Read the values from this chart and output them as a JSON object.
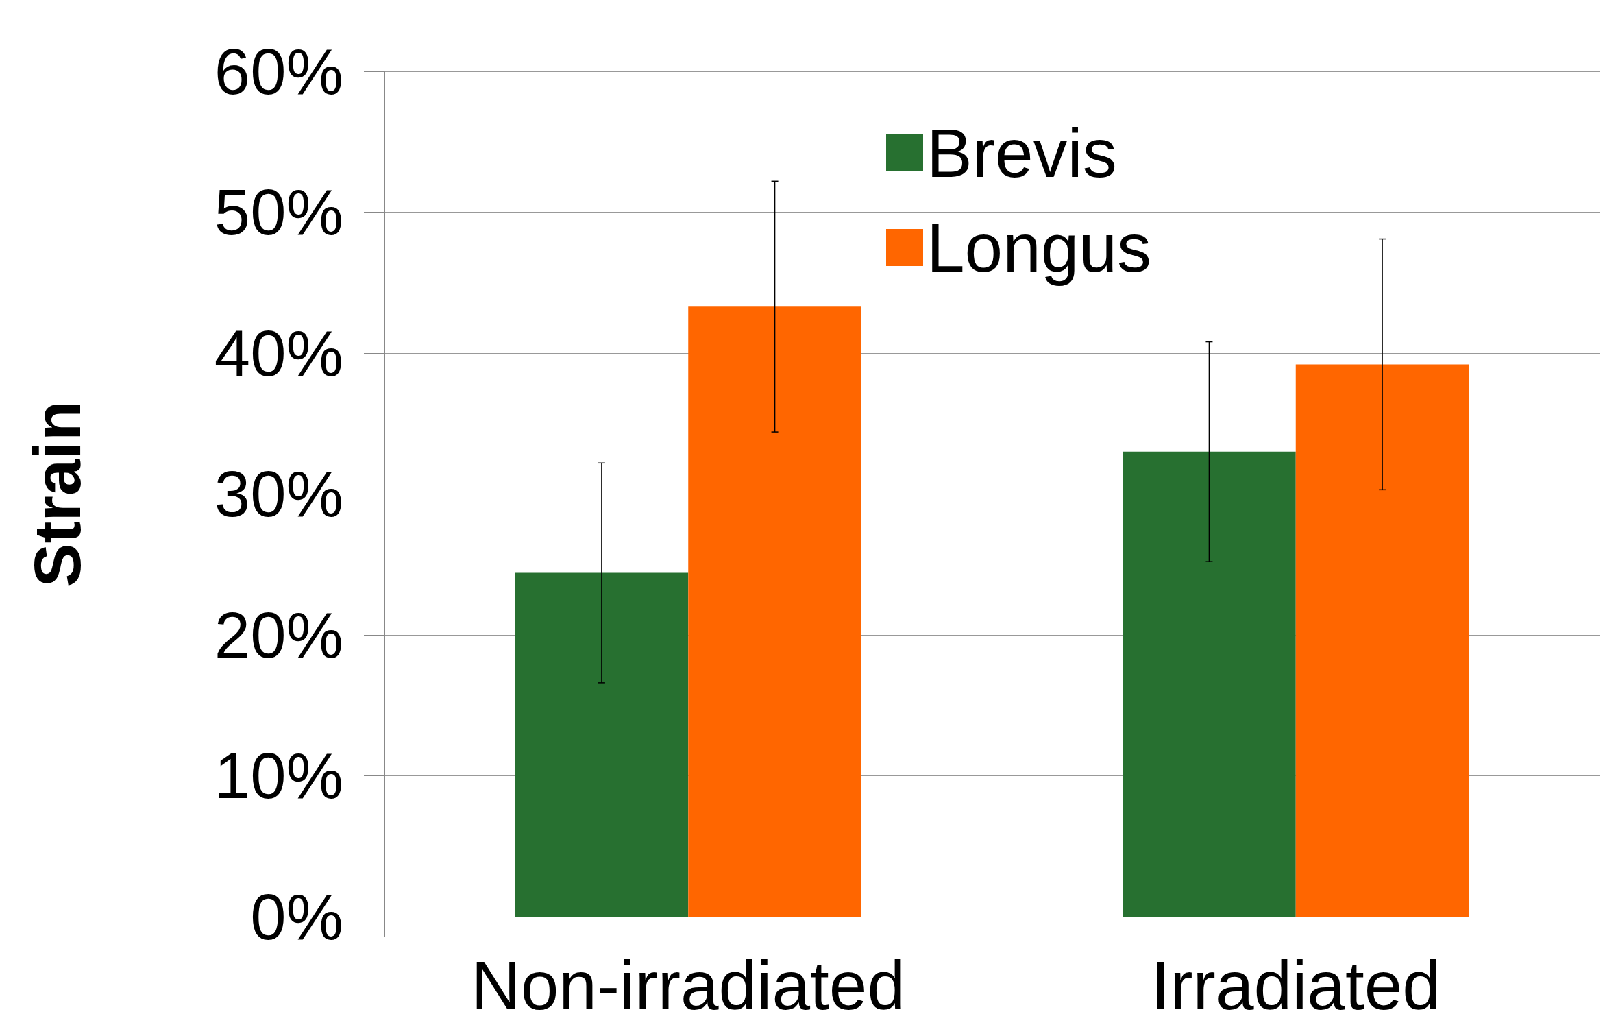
{
  "chart_data": {
    "type": "bar",
    "ylabel": "Strain",
    "categories": [
      "Non-irradiated",
      "Irradiated"
    ],
    "series": [
      {
        "name": "Brevis",
        "color": "#277030",
        "values": [
          24.4,
          33.0
        ],
        "errors": [
          7.8,
          7.8
        ]
      },
      {
        "name": "Longus",
        "color": "#ff6600",
        "values": [
          43.3,
          39.2
        ],
        "errors": [
          8.9,
          8.9
        ]
      }
    ],
    "ylim": [
      0,
      60
    ],
    "yticks": [
      {
        "value": 0,
        "label": "0%"
      },
      {
        "value": 10,
        "label": "10%"
      },
      {
        "value": 20,
        "label": "20%"
      },
      {
        "value": 30,
        "label": "30%"
      },
      {
        "value": 40,
        "label": "40%"
      },
      {
        "value": 50,
        "label": "50%"
      },
      {
        "value": 60,
        "label": "60%"
      }
    ],
    "grid": "y",
    "legend": "top"
  }
}
